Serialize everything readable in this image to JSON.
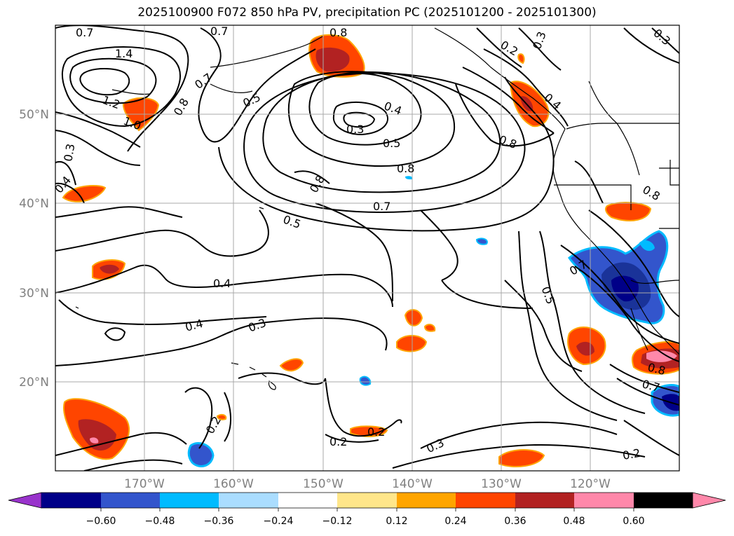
{
  "title": "2025100900 F072 850 hPa PV, precipitation PC (2025101200 - 2025101300)",
  "map": {
    "projection": "lat-lon",
    "lon_range": [
      -180,
      -110
    ],
    "lat_range": [
      10,
      60
    ],
    "grid": true,
    "lat_ticks": [
      "50°N",
      "40°N",
      "30°N",
      "20°N"
    ],
    "lon_ticks": [
      "170°W",
      "160°W",
      "150°W",
      "140°W",
      "130°W",
      "120°W"
    ],
    "contour_labels": [
      "0.7",
      "0.7",
      "0.8",
      "1.4",
      "0.7",
      "0.8",
      "1.2",
      "1.0",
      "0.5",
      "0.4",
      "0.3",
      "0.5",
      "0.8",
      "0.8",
      "0.3",
      "0.2",
      "0.3",
      "0.4",
      "0.4",
      "0.8",
      "0.7",
      "0.5",
      "0.3",
      "0.4",
      "0.4",
      "0.3",
      "0.2",
      "0.2",
      "0.2",
      "0.3",
      "0.2",
      "0.5",
      "0.8",
      "0.7",
      "0.8",
      "0.7"
    ]
  },
  "colorbar": {
    "ticks": [
      "−0.60",
      "−0.48",
      "−0.36",
      "−0.24",
      "−0.12",
      "0.12",
      "0.24",
      "0.36",
      "0.48",
      "0.60"
    ],
    "colors": [
      "#9933cc",
      "#000088",
      "#3355cc",
      "#00bbff",
      "#aaddff",
      "#ffffff",
      "#ffe68a",
      "#ffa500",
      "#ff4500",
      "#b22222",
      "#ff88aa"
    ],
    "extend": "both"
  }
}
